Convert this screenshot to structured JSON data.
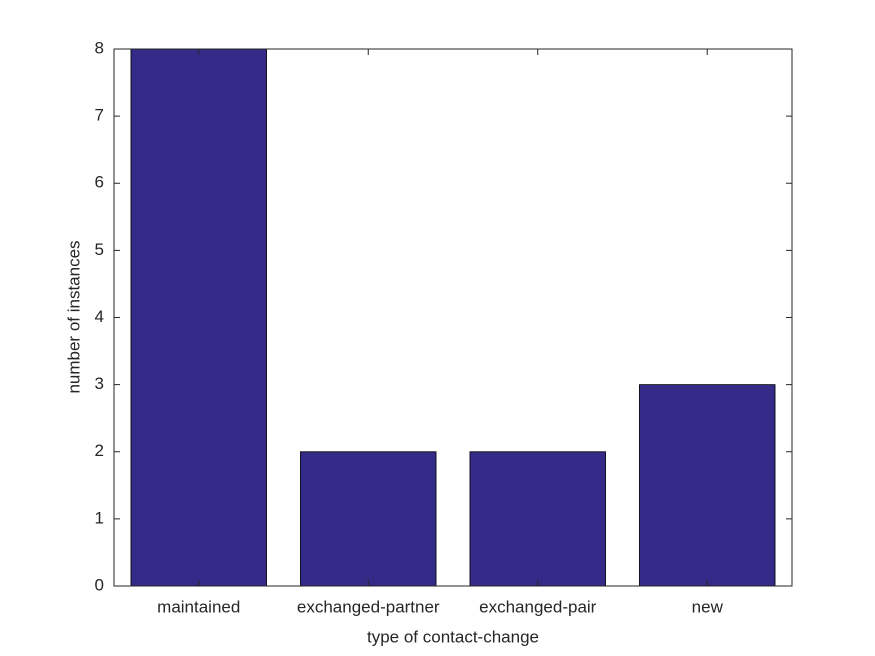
{
  "chart_data": {
    "type": "bar",
    "x_label": "type of contact-change",
    "y_label": "number of instances",
    "categories": [
      "maintained",
      "exchanged-partner",
      "exchanged-pair",
      "new"
    ],
    "values": [
      8,
      2,
      2,
      3
    ],
    "color": "#352a87",
    "ylim": [
      0,
      8
    ],
    "yticks": [
      0,
      1,
      2,
      3,
      4,
      5,
      6,
      7,
      8
    ],
    "grid": false
  }
}
